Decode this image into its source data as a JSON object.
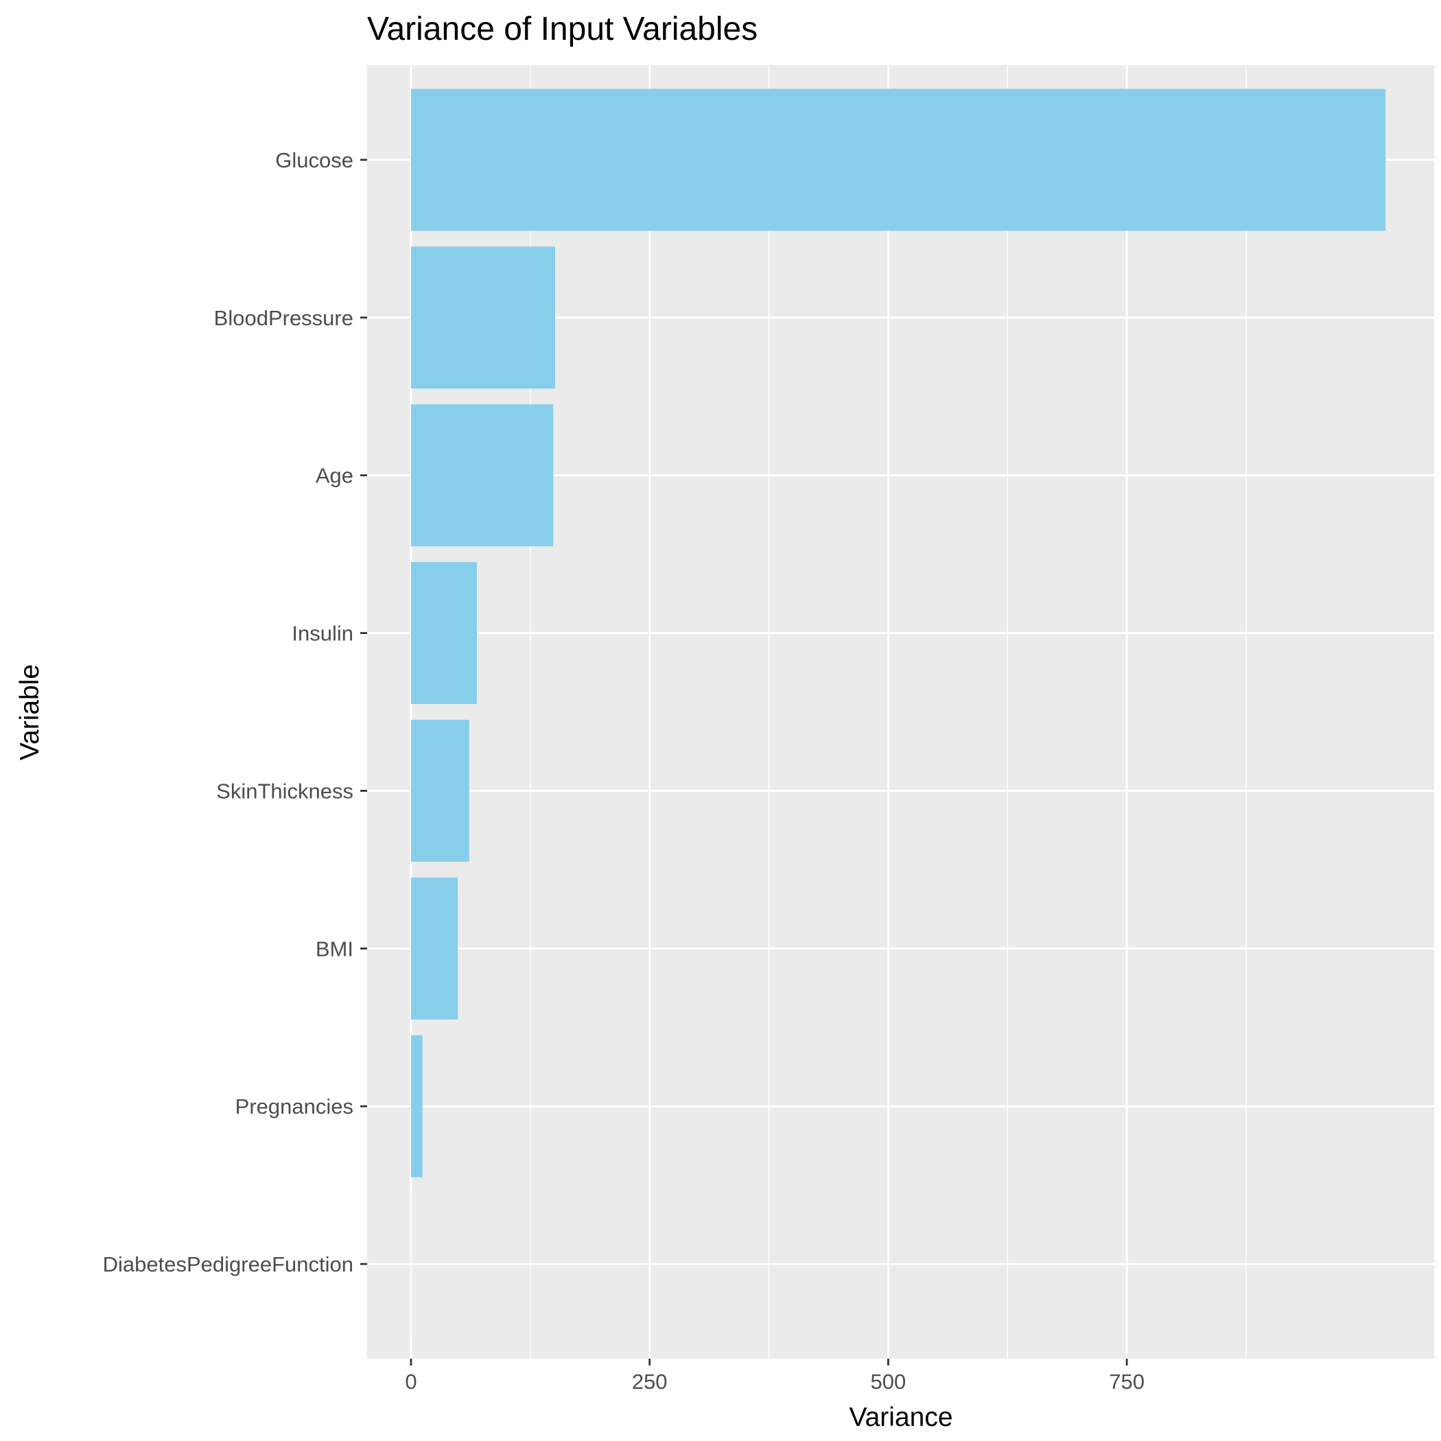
{
  "chart_data": {
    "type": "bar",
    "orientation": "horizontal",
    "title": "Variance of Input Variables",
    "xlabel": "Variance",
    "ylabel": "Variable",
    "categories": [
      "Glucose",
      "BloodPressure",
      "Age",
      "Insulin",
      "SkinThickness",
      "BMI",
      "Pregnancies",
      "DiabetesPedigreeFunction"
    ],
    "values": [
      1021,
      151,
      149,
      69,
      61,
      49,
      12,
      0.11
    ],
    "xlim": [
      -46,
      1072
    ],
    "xticks": [
      0,
      250,
      500,
      750
    ],
    "xtick_labels": [
      "0",
      "250",
      "500",
      "750"
    ],
    "grid": true,
    "legend": "none",
    "colors": {
      "bar": "#87CEEB",
      "panel_background": "#EBEBEB",
      "grid": "#FFFFFF",
      "tick_mark": "#333333"
    }
  }
}
